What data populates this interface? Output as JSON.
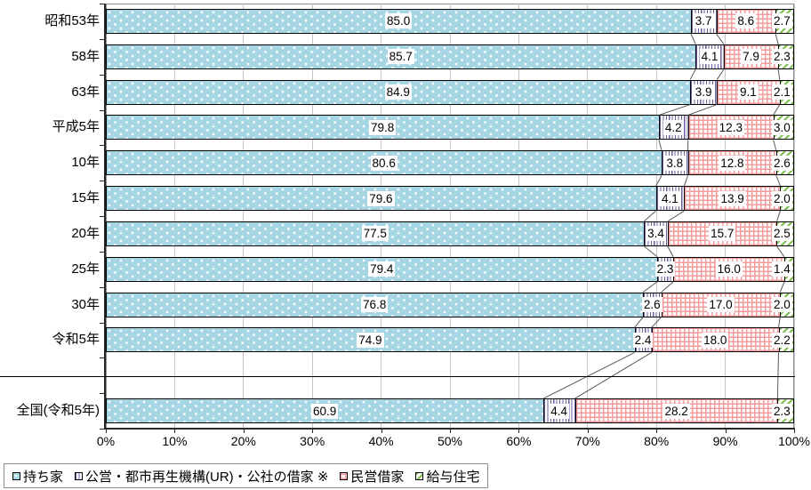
{
  "chart_data": {
    "type": "bar",
    "variant": "100-percent-stacked-horizontal",
    "title": "",
    "categories": [
      "昭和53年",
      "58年",
      "63年",
      "平成5年",
      "10年",
      "15年",
      "20年",
      "25年",
      "30年",
      "令和5年",
      "全国(令和5年)"
    ],
    "series": [
      {
        "name": "持ち家",
        "pattern": "light-blue-white-dots",
        "values": [
          85.0,
          85.7,
          84.9,
          79.8,
          80.6,
          79.6,
          77.5,
          79.4,
          76.8,
          74.9,
          60.9
        ]
      },
      {
        "name": "公営・都市再生機構(UR)・公社の借家 ※",
        "pattern": "purple-vertical-stripes",
        "values": [
          3.7,
          4.1,
          3.9,
          4.2,
          3.8,
          4.1,
          3.4,
          2.3,
          2.6,
          2.4,
          4.4
        ]
      },
      {
        "name": "民営借家",
        "pattern": "red-crosshatch-grid",
        "values": [
          8.6,
          7.9,
          9.1,
          12.3,
          12.8,
          13.9,
          15.7,
          16.0,
          17.0,
          18.0,
          28.2
        ]
      },
      {
        "name": "給与住宅",
        "pattern": "green-diagonal-dashes",
        "values": [
          2.7,
          2.3,
          2.1,
          3.0,
          2.6,
          2.0,
          2.5,
          1.4,
          2.0,
          2.2,
          2.3
        ]
      }
    ],
    "x_ticks": [
      "0%",
      "10%",
      "20%",
      "30%",
      "40%",
      "50%",
      "60%",
      "70%",
      "80%",
      "90%",
      "100%"
    ],
    "xlim": [
      0,
      100
    ],
    "grid": true,
    "legend_position": "bottom-left",
    "separator_after_category": "令和5年",
    "value_label_format": "one-decimal",
    "colors": {
      "owned_home_fill": "#A6D5E3",
      "public_rental_stripe": "#6E5FA3",
      "private_rental_grid": "#F49C9C",
      "company_housing_dash": "#7FBF4D",
      "gridline": "#C6C6C6",
      "connector_line": "#595959",
      "segment_border": "#000000",
      "axis_line": "#262626"
    }
  }
}
